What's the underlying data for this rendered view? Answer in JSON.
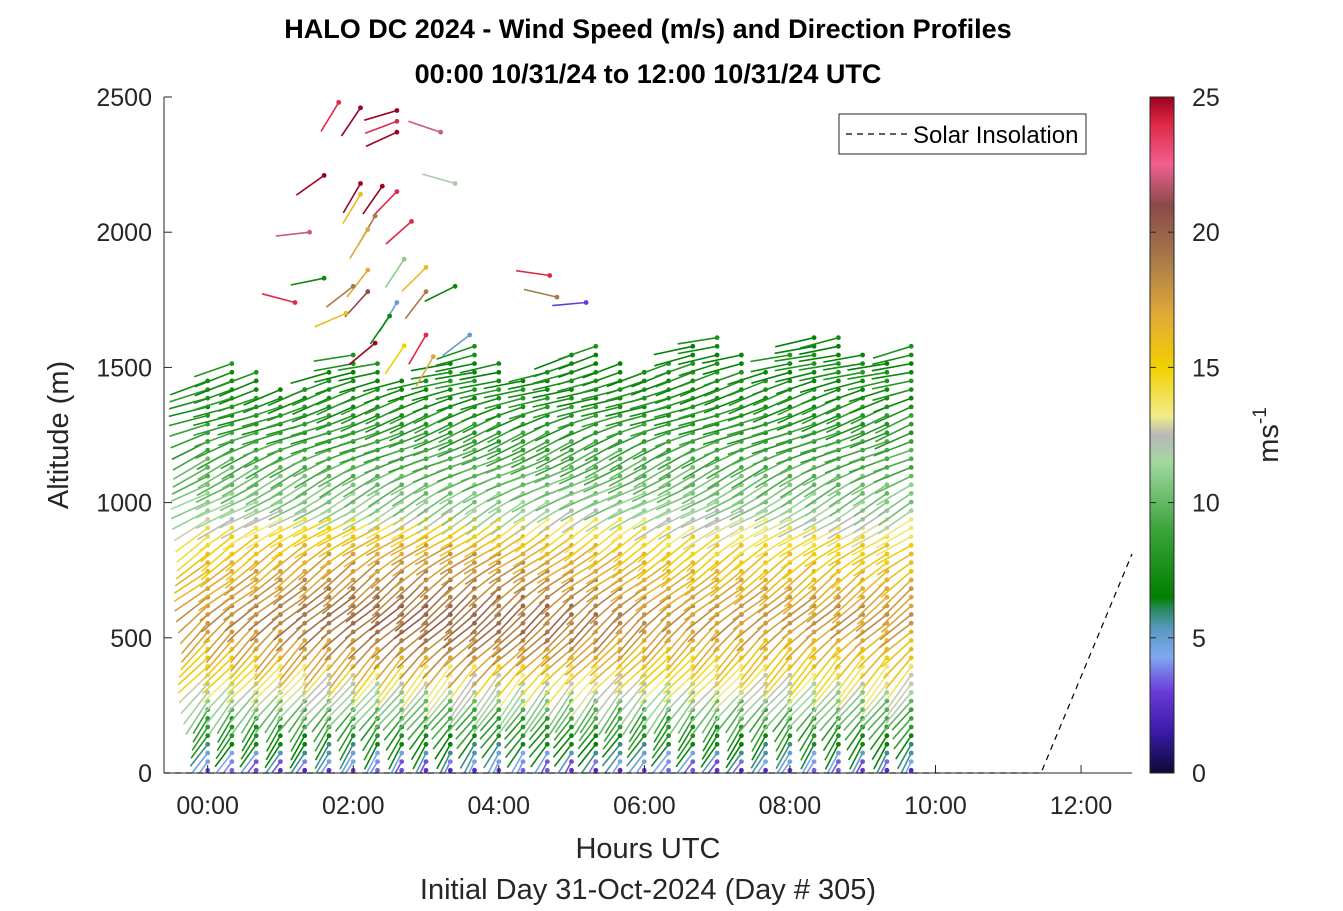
{
  "chart_data": {
    "type": "scatter",
    "title": "HALO DC 2024 - Wind Speed (m/s) and Direction Profiles",
    "subtitle": "00:00 10/31/24 to 12:00 10/31/24  UTC",
    "xlabel": "Hours UTC",
    "xlabel2": "Initial Day 31-Oct-2024 (Day # 305)",
    "ylabel": "Altitude (m)",
    "xlim": [
      -0.6,
      12.7
    ],
    "ylim": [
      0,
      2500
    ],
    "x_ticks": [
      0,
      2,
      4,
      6,
      8,
      10,
      12
    ],
    "x_tick_labels": [
      "00:00",
      "02:00",
      "04:00",
      "06:00",
      "08:00",
      "10:00",
      "12:00"
    ],
    "y_ticks": [
      0,
      500,
      1000,
      1500,
      2000,
      2500
    ],
    "y_tick_labels": [
      "0",
      "500",
      "1000",
      "1500",
      "2000",
      "2500"
    ],
    "colorbar": {
      "label_base": "ms",
      "label_exp": "-1",
      "min": 0,
      "max": 25,
      "ticks": [
        0,
        5,
        10,
        15,
        20,
        25
      ],
      "tick_labels": [
        "0",
        "5",
        "10",
        "15",
        "20",
        "25"
      ],
      "stops": [
        {
          "v": 0,
          "c": "#0b0a35"
        },
        {
          "v": 1.5,
          "c": "#3a1aa8"
        },
        {
          "v": 3,
          "c": "#6a3ad8"
        },
        {
          "v": 4.3,
          "c": "#7fa8f0"
        },
        {
          "v": 5.3,
          "c": "#5a9ac2"
        },
        {
          "v": 6,
          "c": "#2e8a6a"
        },
        {
          "v": 6.5,
          "c": "#008000"
        },
        {
          "v": 9,
          "c": "#3ca33c"
        },
        {
          "v": 11.5,
          "c": "#a2d8a0"
        },
        {
          "v": 12.5,
          "c": "#b8b8b8"
        },
        {
          "v": 13.2,
          "c": "#f2ec8a"
        },
        {
          "v": 15,
          "c": "#f2d000"
        },
        {
          "v": 17,
          "c": "#e0a838"
        },
        {
          "v": 19,
          "c": "#a87a4a"
        },
        {
          "v": 21,
          "c": "#8a4a4a"
        },
        {
          "v": 22.5,
          "c": "#f06090"
        },
        {
          "v": 24,
          "c": "#e02848"
        },
        {
          "v": 25,
          "c": "#9a0020"
        }
      ]
    },
    "legend": {
      "label": "Solar Insolation",
      "placement": "top-right"
    },
    "solar_insolation": {
      "x": [
        -0.6,
        11.45,
        12.7
      ],
      "y": [
        0,
        0,
        810
      ],
      "style": "dashed"
    },
    "wind_profiles": {
      "time_start_hours": 0.0,
      "time_step_hours": 0.3333,
      "time_end_hours": 9.67,
      "altitude_step_m": 32,
      "profile_top_start_m": 1470,
      "profile_top_end_m": 1600,
      "speed_layers_m_per_s": [
        {
          "alt": 0,
          "speed": 2.5
        },
        {
          "alt": 60,
          "speed": 4.5
        },
        {
          "alt": 120,
          "speed": 7
        },
        {
          "alt": 220,
          "speed": 9
        },
        {
          "alt": 320,
          "speed": 12
        },
        {
          "alt": 420,
          "speed": 15
        },
        {
          "alt": 600,
          "speed": 18
        },
        {
          "alt": 850,
          "speed": 15
        },
        {
          "alt": 1000,
          "speed": 11
        },
        {
          "alt": 1200,
          "speed": 9
        },
        {
          "alt": 1400,
          "speed": 7.5
        },
        {
          "alt": 1600,
          "speed": 7
        }
      ],
      "direction_note": "barbs point from north-east / south-west flow, lower-level vectors tilted"
    }
  }
}
